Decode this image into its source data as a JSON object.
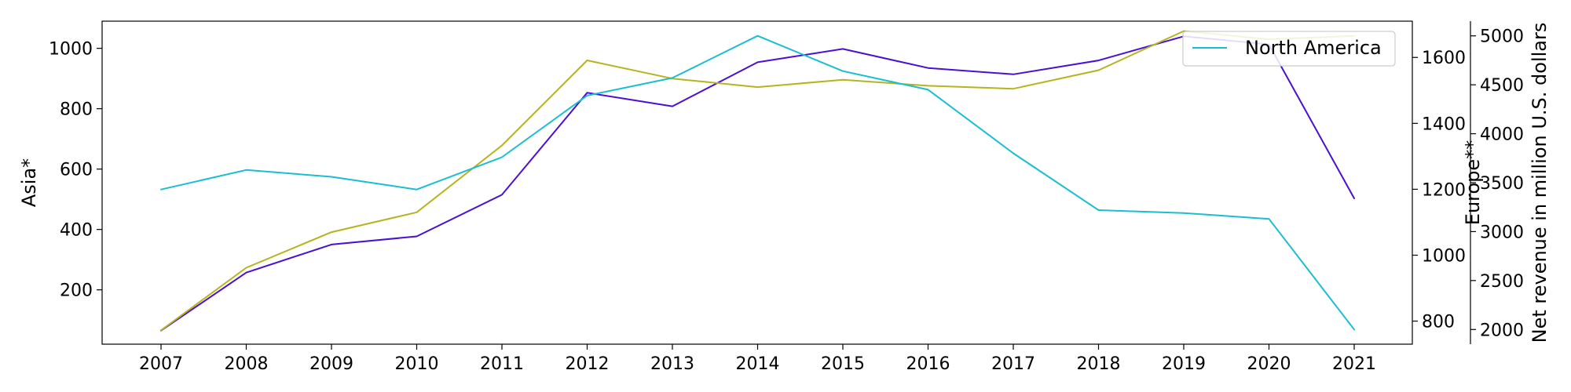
{
  "chart_data": {
    "type": "line",
    "title": "",
    "x": [
      "2007",
      "2008",
      "2009",
      "2010",
      "2011",
      "2012",
      "2013",
      "2014",
      "2015",
      "2016",
      "2017",
      "2018",
      "2019",
      "2020",
      "2021"
    ],
    "xlabel": "",
    "axes": [
      {
        "id": "asia",
        "label": "Asia*",
        "side": "left",
        "ylim": [
          20,
          1090
        ],
        "ticks": [
          "200",
          "400",
          "600",
          "800",
          "1000"
        ]
      },
      {
        "id": "europe",
        "label": "Europe**",
        "side": "right",
        "ylim": [
          730,
          1710
        ],
        "ticks": [
          "800",
          "1000",
          "1200",
          "1400",
          "1600"
        ]
      },
      {
        "id": "na",
        "label": "Net revenue in million U.S. dollars",
        "side": "right-outer",
        "ylim": [
          1850,
          5150
        ],
        "ticks": [
          "2000",
          "2500",
          "3000",
          "3500",
          "4000",
          "4500",
          "5000"
        ]
      }
    ],
    "series": [
      {
        "axis": "asia",
        "color": "#4b0fd1",
        "values": [
          65,
          257,
          350,
          377,
          515,
          853,
          808,
          954,
          998,
          935,
          914,
          960,
          1040,
          1013,
          503
        ]
      },
      {
        "axis": "europe",
        "color": "#b5b41e",
        "values": [
          772,
          962,
          1070,
          1130,
          1333,
          1591,
          1536,
          1510,
          1532,
          1514,
          1505,
          1561,
          1680,
          1655,
          1665
        ]
      },
      {
        "name": "North America",
        "axis": "na",
        "color": "#19becf",
        "values": [
          3430,
          3630,
          3560,
          3430,
          3760,
          4390,
          4570,
          5000,
          4640,
          4450,
          3800,
          3220,
          3190,
          3130,
          2000
        ]
      }
    ],
    "legend": {
      "position": "top-right",
      "entries": [
        "North America"
      ]
    },
    "grid": false
  }
}
